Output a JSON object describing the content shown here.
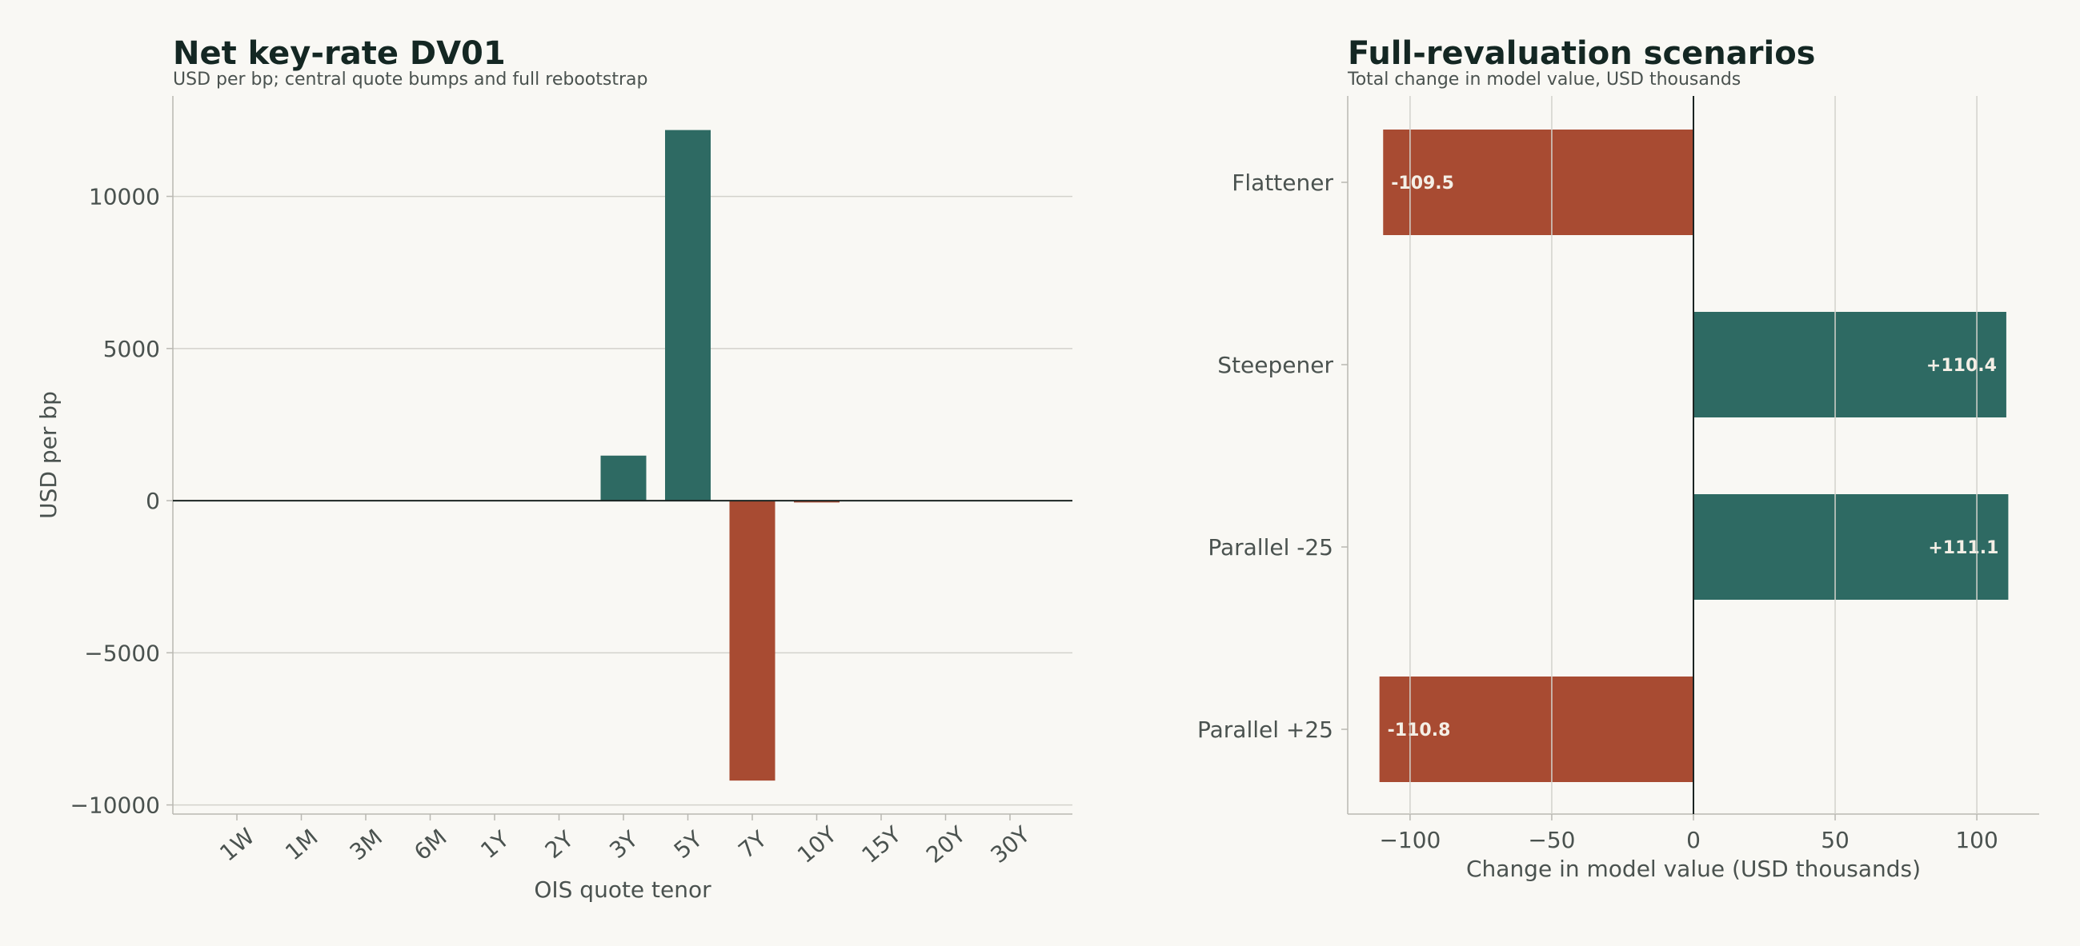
{
  "colors": {
    "background": "#f9f8f4",
    "positive": "#2e6a63",
    "negative": "#a84b32",
    "grid": "#d3d2cc",
    "axis": "#b9b8b2",
    "text": "#4a524f",
    "title": "#142723",
    "zero_line": "#1b2422"
  },
  "chart_data": [
    {
      "type": "bar",
      "title": "Net key-rate DV01",
      "subtitle": "USD per bp; central quote bumps and full rebootstrap",
      "xlabel": "OIS quote tenor",
      "ylabel": "USD per bp",
      "categories": [
        "1W",
        "1M",
        "3M",
        "6M",
        "1Y",
        "2Y",
        "3Y",
        "5Y",
        "7Y",
        "10Y",
        "15Y",
        "20Y",
        "30Y"
      ],
      "values": [
        0,
        0,
        0,
        0,
        0,
        0,
        1480,
        12180,
        -9200,
        -60,
        0,
        0,
        0
      ],
      "ylim": [
        -10300,
        13300
      ],
      "yticks": [
        -10000,
        -5000,
        0,
        5000,
        10000
      ],
      "ytick_labels": [
        "−10000",
        "−5000",
        "0",
        "5000",
        "10000"
      ],
      "grid": "horizontal",
      "legend": "none"
    },
    {
      "type": "bar",
      "orientation": "horizontal",
      "title": "Full-revaluation scenarios",
      "subtitle": "Total change in model value, USD thousands",
      "xlabel": "Change in model value (USD thousands)",
      "ylabel": "",
      "categories": [
        "Flattener",
        "Steepener",
        "Parallel -25",
        "Parallel +25"
      ],
      "values": [
        -109.5,
        110.4,
        111.1,
        -110.8
      ],
      "data_labels": [
        "-109.5",
        "+110.4",
        "+111.1",
        "-110.8"
      ],
      "xlim": [
        -122,
        122
      ],
      "xticks": [
        -100,
        -50,
        0,
        50,
        100
      ],
      "xtick_labels": [
        "−100",
        "−50",
        "0",
        "50",
        "100"
      ],
      "grid": "vertical",
      "legend": "none"
    }
  ]
}
